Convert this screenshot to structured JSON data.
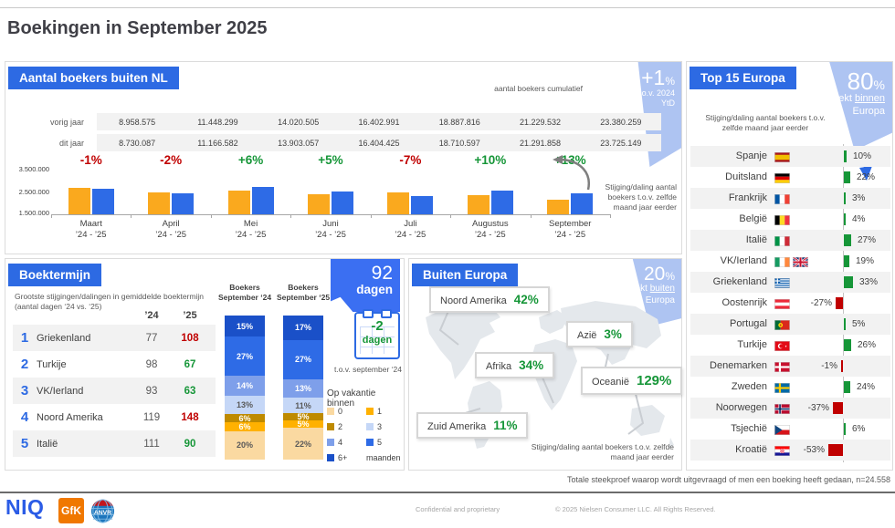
{
  "page": {
    "title": "Boekingen in September 2025",
    "footnote": "Totale steekproef waarop wordt uitgevraagd of men een boeking heeft gedaan, n=24.558",
    "confidential": "Confidential and proprietary",
    "copyright": "© 2025 Nielsen Consumer LLC. All Rights Reserved.",
    "logos": {
      "niq": "NIQ",
      "gfk": "GfK",
      "anvr": "ANVR"
    }
  },
  "colors": {
    "accent_blue": "#2D6AE3",
    "bar_orange": "#FAA91E",
    "bar_blue": "#2E6BE6",
    "badge_light_blue": "#AEC4F2",
    "callout_blue": "#3B6FF2",
    "positive_green": "#169638",
    "negative_red": "#C00000",
    "row_stripe": "#F2F2F2",
    "map_gray": "#E4E8EC"
  },
  "bookers": {
    "panel_title": "Aantal boekers buiten NL",
    "cumulative_label": "aantal boekers cumulatief",
    "badge": {
      "value": "+1",
      "unit": "%",
      "line2": "t.o.v. 2024",
      "line3": "YtD"
    },
    "rows": [
      {
        "label": "vorig jaar",
        "values": [
          "8.958.575",
          "11.448.299",
          "14.020.505",
          "16.402.991",
          "18.887.816",
          "21.229.532",
          "23.380.259"
        ]
      },
      {
        "label": "dit jaar",
        "values": [
          "8.730.087",
          "11.166.582",
          "13.903.057",
          "16.404.425",
          "18.710.597",
          "21.291.858",
          "23.725.149"
        ]
      }
    ],
    "y_ticks": [
      "3.500.000",
      "2.500.000",
      "1.500.000"
    ],
    "month_sublabel": "’24 - ’25",
    "side_note": "Stijging/daling aantal boekers t.o.v. zelfde maand jaar eerder"
  },
  "boektermijn": {
    "panel_title": "Boektermijn",
    "subtitle": "Grootste stijgingen/dalingen in gemiddelde boektermijn (aantal dagen ‘24 vs. ‘25)",
    "col_headers": [
      "’24",
      "’25"
    ],
    "rows": [
      {
        "rank": "1",
        "name": "Griekenland",
        "y24": "77",
        "y25": "108",
        "dir": "up"
      },
      {
        "rank": "2",
        "name": "Turkije",
        "y24": "98",
        "y25": "67",
        "dir": "down"
      },
      {
        "rank": "3",
        "name": "VK/Ierland",
        "y24": "93",
        "y25": "63",
        "dir": "down"
      },
      {
        "rank": "4",
        "name": "Noord Amerika",
        "y24": "119",
        "y25": "148",
        "dir": "up"
      },
      {
        "rank": "5",
        "name": "Italië",
        "y24": "111",
        "y25": "90",
        "dir": "down"
      }
    ],
    "bar_titles": [
      "Boekers September ‘24",
      "Boekers September ‘25"
    ],
    "badge": {
      "value": "92",
      "unit": "dagen"
    },
    "delta": {
      "value": "-2",
      "unit": "dagen",
      "sub": "t.o.v. september ‘24"
    },
    "legend_title": "Op vakantie binnen",
    "legend": [
      {
        "label": "0",
        "color": "#FAD9A1"
      },
      {
        "label": "1",
        "color": "#FFB100"
      },
      {
        "label": "2",
        "color": "#BE8A00"
      },
      {
        "label": "3",
        "color": "#C5D7F7"
      },
      {
        "label": "4",
        "color": "#7E9FEA"
      },
      {
        "label": "5",
        "color": "#2E6BE6"
      },
      {
        "label": "6+",
        "color": "#1A50C8"
      },
      {
        "label": "maanden",
        "color": null
      }
    ]
  },
  "buiten_europa": {
    "panel_title": "Buiten Europa",
    "badge": {
      "value": "20",
      "unit": "%",
      "line2_pre": "boekt ",
      "line2_u": "buiten",
      "line3": "Europa"
    },
    "regions": [
      {
        "name": "Noord Amerika",
        "pct": "42%"
      },
      {
        "name": "Azië",
        "pct": "3%"
      },
      {
        "name": "Afrika",
        "pct": "34%"
      },
      {
        "name": "Oceanië",
        "pct": "129%"
      },
      {
        "name": "Zuid Amerika",
        "pct": "11%"
      }
    ],
    "note": "Stijging/daling aantal boekers t.o.v. zelfde maand jaar eerder"
  },
  "top15": {
    "panel_title": "Top 15 Europa",
    "badge": {
      "value": "80",
      "unit": "%",
      "line2_pre": "boekt ",
      "line2_u": "binnen",
      "line3": "Europa"
    },
    "subtitle": "Stijging/daling aantal boekers t.o.v. zelfde maand jaar eerder",
    "rows": [
      {
        "name": "Spanje",
        "flags": [
          "es"
        ],
        "pct": 10
      },
      {
        "name": "Duitsland",
        "flags": [
          "de"
        ],
        "pct": 22
      },
      {
        "name": "Frankrijk",
        "flags": [
          "fr"
        ],
        "pct": 3
      },
      {
        "name": "België",
        "flags": [
          "be"
        ],
        "pct": 4
      },
      {
        "name": "Italië",
        "flags": [
          "it"
        ],
        "pct": 27
      },
      {
        "name": "VK/Ierland",
        "flags": [
          "ie",
          "gb"
        ],
        "pct": 19
      },
      {
        "name": "Griekenland",
        "flags": [
          "gr"
        ],
        "pct": 33
      },
      {
        "name": "Oostenrijk",
        "flags": [
          "at"
        ],
        "pct": -27
      },
      {
        "name": "Portugal",
        "flags": [
          "pt"
        ],
        "pct": 5
      },
      {
        "name": "Turkije",
        "flags": [
          "tr"
        ],
        "pct": 26
      },
      {
        "name": "Denemarken",
        "flags": [
          "dk"
        ],
        "pct": -1
      },
      {
        "name": "Zweden",
        "flags": [
          "se"
        ],
        "pct": 24
      },
      {
        "name": "Noorwegen",
        "flags": [
          "no"
        ],
        "pct": -37
      },
      {
        "name": "Tsjechië",
        "flags": [
          "cz"
        ],
        "pct": 6
      },
      {
        "name": "Kroatië",
        "flags": [
          "hr"
        ],
        "pct": -53
      }
    ]
  },
  "chart_data": [
    {
      "id": "aantal_boekers_per_maand",
      "type": "bar",
      "title": "Aantal boekers buiten NL",
      "categories": [
        "Maart",
        "April",
        "Mei",
        "Juni",
        "Juli",
        "Augustus",
        "September"
      ],
      "series": [
        {
          "name": "’24",
          "color": "#FAA91E",
          "values": [
            2680000,
            2489724,
            2572206,
            2382486,
            2484825,
            2341716,
            2150727
          ]
        },
        {
          "name": "’25",
          "color": "#2E6BE6",
          "values": [
            2650000,
            2436495,
            2736475,
            2501368,
            2306172,
            2581261,
            2433291
          ]
        }
      ],
      "change_labels": [
        "-1%",
        "-2%",
        "+6%",
        "+5%",
        "-7%",
        "+10%",
        "+13%"
      ],
      "ylim": [
        1500000,
        3500000
      ],
      "yticks": [
        3500000,
        2500000,
        1500000
      ],
      "legend_position": "none",
      "grid": false
    },
    {
      "id": "boektermijn_verdeling",
      "type": "bar",
      "stacked": true,
      "categories": [
        "Boekers September ‘24",
        "Boekers September ‘25"
      ],
      "series": [
        {
          "name": "6+ maanden",
          "color": "#1A50C8",
          "values": [
            15,
            17
          ]
        },
        {
          "name": "5 maanden",
          "color": "#2E6BE6",
          "values": [
            27,
            27
          ]
        },
        {
          "name": "4 maanden",
          "color": "#7E9FEA",
          "values": [
            14,
            13
          ]
        },
        {
          "name": "3 maanden",
          "color": "#C5D7F7",
          "values": [
            13,
            11
          ]
        },
        {
          "name": "2 maanden",
          "color": "#BE8A00",
          "values": [
            6,
            5
          ]
        },
        {
          "name": "1 maand",
          "color": "#FFB100",
          "values": [
            6,
            5
          ]
        },
        {
          "name": "0 maanden",
          "color": "#FAD9A1",
          "values": [
            20,
            22
          ]
        }
      ],
      "unit": "%"
    },
    {
      "id": "top15_europa_stijging_daling",
      "type": "bar",
      "orientation": "horizontal",
      "categories": [
        "Spanje",
        "Duitsland",
        "Frankrijk",
        "België",
        "Italië",
        "VK/Ierland",
        "Griekenland",
        "Oostenrijk",
        "Portugal",
        "Turkije",
        "Denemarken",
        "Zweden",
        "Noorwegen",
        "Tsjechië",
        "Kroatië"
      ],
      "values": [
        10,
        22,
        3,
        4,
        27,
        19,
        33,
        -27,
        5,
        26,
        -1,
        24,
        -37,
        6,
        -53
      ],
      "unit": "%"
    },
    {
      "id": "buiten_europa_stijging_daling",
      "type": "bar",
      "categories": [
        "Noord Amerika",
        "Azië",
        "Afrika",
        "Oceanië",
        "Zuid Amerika"
      ],
      "values": [
        42,
        3,
        34,
        129,
        11
      ],
      "unit": "%"
    },
    {
      "id": "boektermijn_top5",
      "type": "table",
      "columns": [
        "rank",
        "land",
        "’24",
        "’25"
      ],
      "rows": [
        [
          1,
          "Griekenland",
          77,
          108
        ],
        [
          2,
          "Turkije",
          98,
          67
        ],
        [
          3,
          "VK/Ierland",
          93,
          63
        ],
        [
          4,
          "Noord Amerika",
          119,
          148
        ],
        [
          5,
          "Italië",
          111,
          90
        ]
      ]
    }
  ]
}
